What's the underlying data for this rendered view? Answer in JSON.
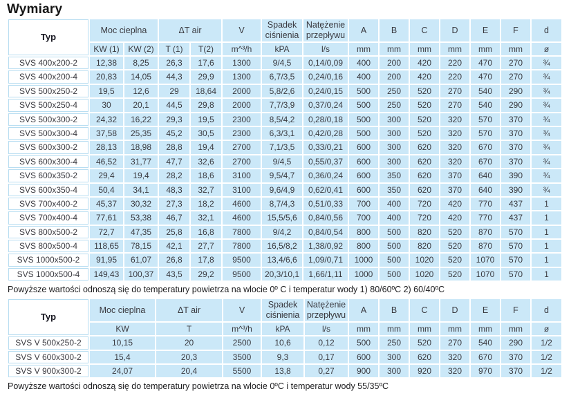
{
  "title": "Wymiary",
  "table1": {
    "group_headers": [
      "Typ",
      "Moc cieplna",
      "ΔT air",
      "V",
      "Spadek ciśnienia",
      "Natężenie przepływu",
      "A",
      "B",
      "C",
      "D",
      "E",
      "F",
      "d"
    ],
    "unit_headers": [
      "KW (1)",
      "KW (2)",
      "T (1)",
      "T(2)",
      "m^³/h",
      "kPA",
      "l/s",
      "mm",
      "mm",
      "mm",
      "mm",
      "mm",
      "mm",
      "ø"
    ],
    "rows": [
      [
        "SVS 400x200-2",
        "12,38",
        "8,25",
        "26,3",
        "17,6",
        "1300",
        "9/4,5",
        "0,14/0,09",
        "400",
        "200",
        "420",
        "220",
        "470",
        "270",
        "¾"
      ],
      [
        "SVS 400x200-4",
        "20,83",
        "14,05",
        "44,3",
        "29,9",
        "1300",
        "6,7/3,5",
        "0,24/0,16",
        "400",
        "200",
        "420",
        "220",
        "470",
        "270",
        "¾"
      ],
      [
        "SVS 500x250-2",
        "19,5",
        "12,6",
        "29",
        "18,64",
        "2000",
        "5,8/2,6",
        "0,24/0,15",
        "500",
        "250",
        "520",
        "270",
        "540",
        "290",
        "¾"
      ],
      [
        "SVS 500x250-4",
        "30",
        "20,1",
        "44,5",
        "29,8",
        "2000",
        "7,7/3,9",
        "0,37/0,24",
        "500",
        "250",
        "520",
        "270",
        "540",
        "290",
        "¾"
      ],
      [
        "SVS 500x300-2",
        "24,32",
        "16,22",
        "29,3",
        "19,5",
        "2300",
        "8,5/4,2",
        "0,28/0,18",
        "500",
        "300",
        "520",
        "320",
        "570",
        "370",
        "¾"
      ],
      [
        "SVS 500x300-4",
        "37,58",
        "25,35",
        "45,2",
        "30,5",
        "2300",
        "6,3/3,1",
        "0,42/0,28",
        "500",
        "300",
        "520",
        "320",
        "570",
        "370",
        "¾"
      ],
      [
        "SVS 600x300-2",
        "28,13",
        "18,98",
        "28,8",
        "19,4",
        "2700",
        "7,1/3,5",
        "0,33/0,21",
        "600",
        "300",
        "620",
        "320",
        "670",
        "370",
        "¾"
      ],
      [
        "SVS 600x300-4",
        "46,52",
        "31,77",
        "47,7",
        "32,6",
        "2700",
        "9/4,5",
        "0,55/0,37",
        "600",
        "300",
        "620",
        "320",
        "670",
        "370",
        "¾"
      ],
      [
        "SVS 600x350-2",
        "29,4",
        "19,4",
        "28,2",
        "18,6",
        "3100",
        "9,5/4,7",
        "0,36/0,24",
        "600",
        "350",
        "620",
        "370",
        "640",
        "390",
        "¾"
      ],
      [
        "SVS 600x350-4",
        "50,4",
        "34,1",
        "48,3",
        "32,7",
        "3100",
        "9,6/4,9",
        "0,62/0,41",
        "600",
        "350",
        "620",
        "370",
        "640",
        "390",
        "¾"
      ],
      [
        "SVS 700x400-2",
        "45,37",
        "30,32",
        "27,3",
        "18,2",
        "4600",
        "8,7/4,3",
        "0,51/0,33",
        "700",
        "400",
        "720",
        "420",
        "770",
        "437",
        "1"
      ],
      [
        "SVS 700x400-4",
        "77,61",
        "53,38",
        "46,7",
        "32,1",
        "4600",
        "15,5/5,6",
        "0,84/0,56",
        "700",
        "400",
        "720",
        "420",
        "770",
        "437",
        "1"
      ],
      [
        "SVS 800x500-2",
        "72,7",
        "47,35",
        "25,8",
        "16,8",
        "7800",
        "9/4,2",
        "0,84/0,54",
        "800",
        "500",
        "820",
        "520",
        "870",
        "570",
        "1"
      ],
      [
        "SVS 800x500-4",
        "118,65",
        "78,15",
        "42,1",
        "27,7",
        "7800",
        "16,5/8,2",
        "1,38/0,92",
        "800",
        "500",
        "820",
        "520",
        "870",
        "570",
        "1"
      ],
      [
        "SVS 1000x500-2",
        "91,95",
        "61,07",
        "26,8",
        "17,8",
        "9500",
        "13,4/6,6",
        "1,09/0,71",
        "1000",
        "500",
        "1020",
        "520",
        "1070",
        "570",
        "1"
      ],
      [
        "SVS 1000x500-4",
        "149,43",
        "100,37",
        "43,5",
        "29,2",
        "9500",
        "20,3/10,1",
        "1,66/1,11",
        "1000",
        "500",
        "1020",
        "520",
        "1070",
        "570",
        "1"
      ]
    ],
    "footnote": "Powyższe wartości odnoszą się do temperatury powietrza na wlocie 0º C i temperatur wody 1) 80/60ºC 2) 60/40ºC"
  },
  "table2": {
    "group_headers": [
      "Typ",
      "Moc cieplna",
      "ΔT air",
      "V",
      "Spadek ciśnienia",
      "Natężenie przepływu",
      "A",
      "B",
      "C",
      "D",
      "E",
      "F",
      "d"
    ],
    "unit_headers": [
      "KW",
      "T",
      "m^³/h",
      "kPA",
      "l/s",
      "mm",
      "mm",
      "mm",
      "mm",
      "mm",
      "mm",
      "ø"
    ],
    "rows": [
      [
        "SVS V 500x250-2",
        "10,15",
        "20",
        "2500",
        "10,6",
        "0,12",
        "500",
        "250",
        "520",
        "270",
        "540",
        "290",
        "1/2"
      ],
      [
        "SVS V 600x300-2",
        "15,4",
        "20,3",
        "3500",
        "9,3",
        "0,17",
        "600",
        "300",
        "620",
        "320",
        "670",
        "370",
        "1/2"
      ],
      [
        "SVS V 900x300-2",
        "24,07",
        "20,4",
        "5500",
        "13,8",
        "0,27",
        "900",
        "300",
        "920",
        "320",
        "970",
        "370",
        "1/2"
      ]
    ],
    "footnote": "Powyższe wartości odnoszą się do temperatury powietrza na wlocie 0ºC i temperatur wody 55/35ºC"
  },
  "colors": {
    "cell_blue": "#cbe8f8",
    "label_border_blue": "#b7ddf1",
    "text": "#3a3a40",
    "title_text": "#151515"
  }
}
